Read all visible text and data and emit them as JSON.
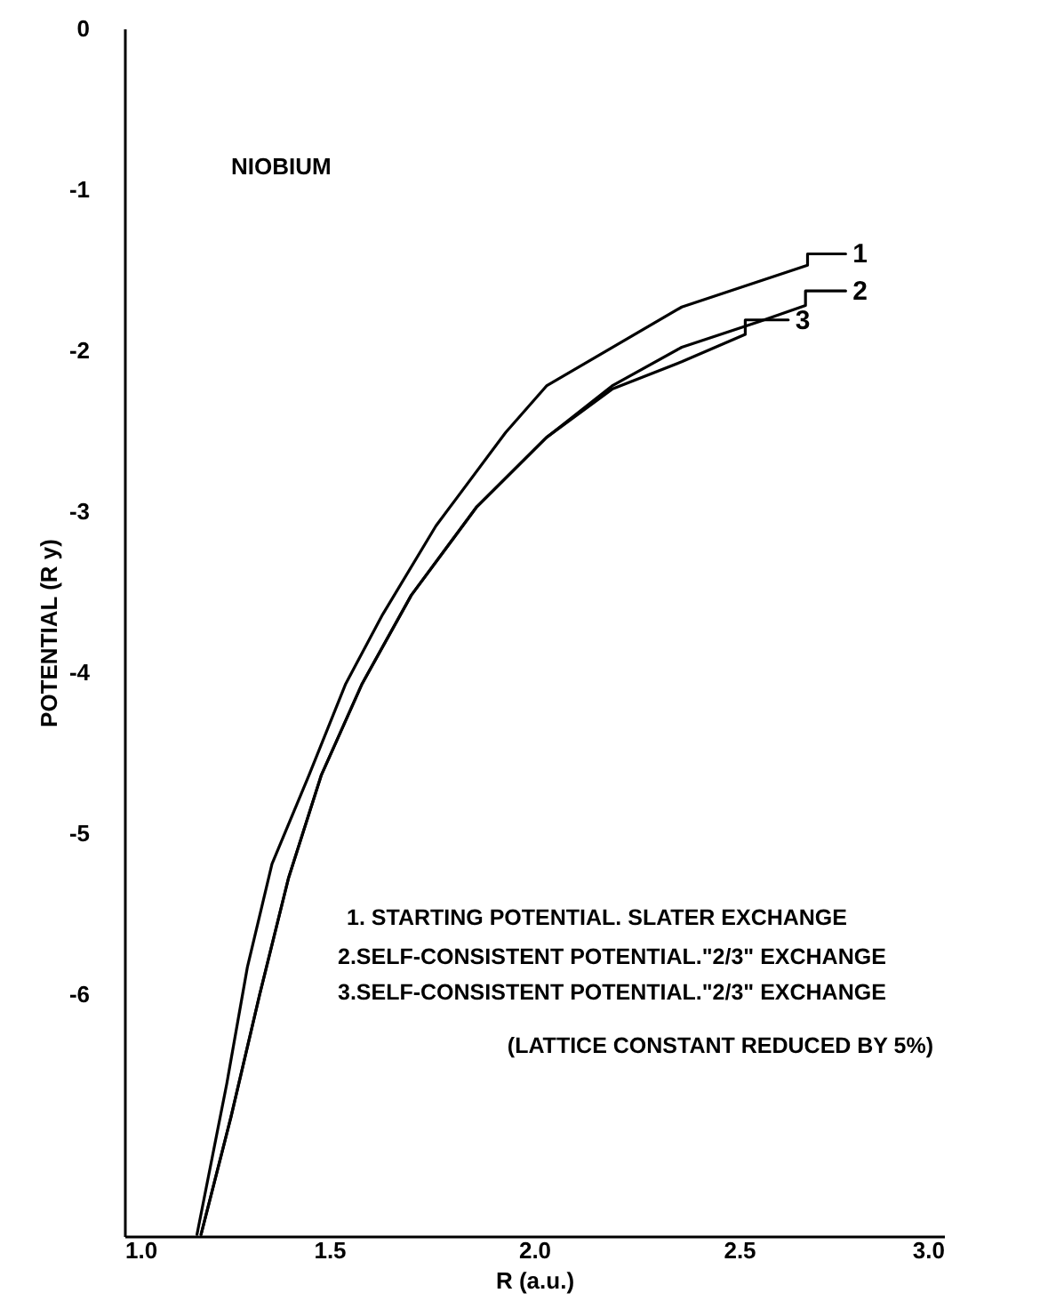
{
  "chart_data": {
    "type": "line",
    "xlabel": "R (a.u.)",
    "ylabel": "POTENTIAL   (R y)",
    "annotations": [
      "NIOBIUM",
      "1. STARTING POTENTIAL. SLATER EXCHANGE",
      "2.SELF-CONSISTENT POTENTIAL.\"2/3\" EXCHANGE",
      "3.SELF-CONSISTENT POTENTIAL.\"2/3\" EXCHANGE",
      "(LATTICE CONSTANT REDUCED BY 5%)"
    ],
    "xlim": [
      1.0,
      3.0
    ],
    "xticks": [
      {
        "value": 1.0,
        "label": "1.0"
      },
      1.5,
      {
        "value": 2.0,
        "label": "2.0"
      },
      2.5,
      {
        "value": 3.0,
        "label": "3.0"
      }
    ],
    "ylim": [
      -7.5,
      0
    ],
    "yticks": [
      0,
      -1,
      -2,
      -3,
      -4,
      -5,
      -6
    ],
    "grid": false,
    "marker": "none",
    "line_style": "solid",
    "series": [
      {
        "name": "1",
        "color": "#000000",
        "x": [
          1.177,
          1.25,
          1.3,
          1.36,
          1.45,
          1.54,
          1.63,
          1.76,
          1.93,
          2.03,
          2.36,
          2.667,
          2.667,
          2.76
        ],
        "values": [
          -7.49,
          -6.55,
          -5.83,
          -5.19,
          -4.64,
          -4.07,
          -3.64,
          -3.09,
          -2.51,
          -2.22,
          -1.73,
          -1.47,
          -1.4,
          -1.4
        ]
      },
      {
        "name": "2",
        "color": "#000000",
        "x": [
          1.187,
          1.26,
          1.33,
          1.4,
          1.48,
          1.58,
          1.7,
          1.86,
          2.03,
          2.19,
          2.36,
          2.55,
          2.662,
          2.662,
          2.76
        ],
        "values": [
          -7.49,
          -6.76,
          -6.0,
          -5.28,
          -4.64,
          -4.07,
          -3.52,
          -2.97,
          -2.54,
          -2.22,
          -1.98,
          -1.82,
          -1.72,
          -1.63,
          -1.63
        ]
      },
      {
        "name": "3",
        "color": "#000000",
        "x": [
          1.187,
          1.26,
          1.33,
          1.4,
          1.48,
          1.58,
          1.7,
          1.86,
          2.03,
          2.19,
          2.36,
          2.515,
          2.515,
          2.62
        ],
        "values": [
          -7.49,
          -6.76,
          -6.0,
          -5.28,
          -4.64,
          -4.07,
          -3.52,
          -2.97,
          -2.54,
          -2.24,
          -2.07,
          -1.9,
          -1.81,
          -1.81
        ]
      }
    ]
  }
}
